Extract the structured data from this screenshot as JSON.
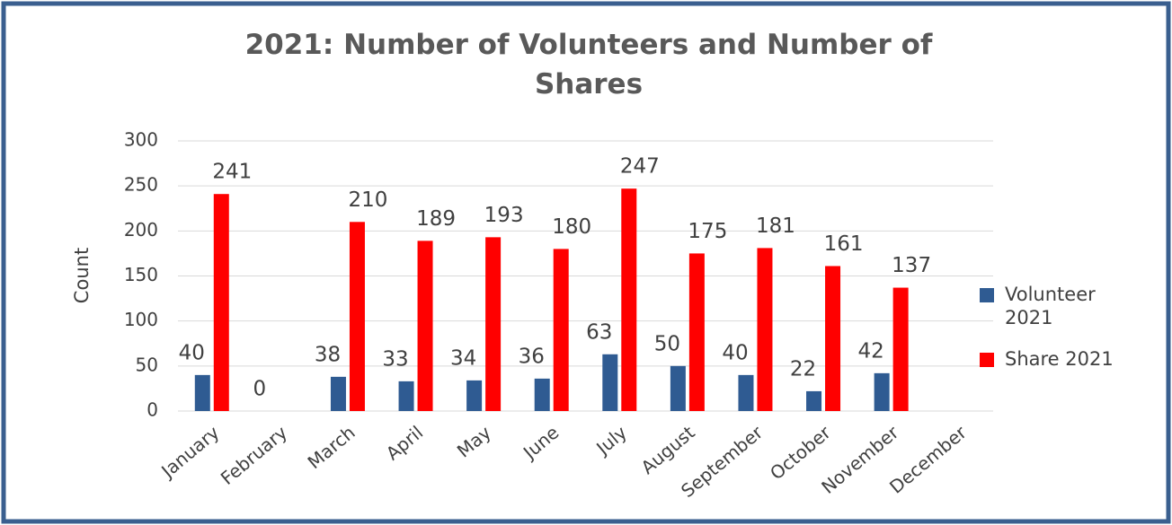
{
  "chart_data": {
    "type": "bar",
    "title": "2021: Number of Volunteers and Number of Shares",
    "y_label": "Count",
    "categories": [
      "January",
      "February",
      "March",
      "April",
      "May",
      "June",
      "July",
      "August",
      "September",
      "October",
      "November",
      "December"
    ],
    "series": [
      {
        "name": "Volunteer 2021",
        "color": "#2f5b92",
        "values": [
          40,
          0,
          38,
          33,
          34,
          36,
          63,
          50,
          40,
          22,
          42,
          null
        ]
      },
      {
        "name": "Share 2021",
        "color": "#ff0000",
        "values": [
          241,
          null,
          210,
          189,
          193,
          180,
          247,
          175,
          181,
          161,
          137,
          null
        ]
      }
    ],
    "ylim": [
      0,
      300
    ],
    "yticks": [
      0,
      50,
      100,
      150,
      200,
      250,
      300
    ],
    "grid": true,
    "legend": "right"
  }
}
